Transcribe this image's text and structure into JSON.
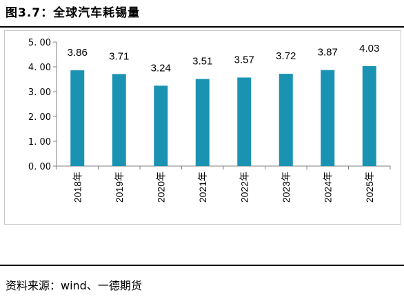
{
  "header": {
    "title": "图3.7：全球汽车耗锡量"
  },
  "footer": {
    "source": "资料来源：wind、一德期货"
  },
  "colors": {
    "bar": "#1a93b3",
    "axis": "#7f7f7f",
    "frame": "#c8c8c8"
  },
  "chart_data": {
    "type": "bar",
    "title": "",
    "xlabel": "",
    "ylabel": "",
    "categories": [
      "2018年",
      "2019年",
      "2020年",
      "2021年",
      "2022年",
      "2023年",
      "2024年",
      "2025年"
    ],
    "values": [
      3.86,
      3.71,
      3.24,
      3.51,
      3.57,
      3.72,
      3.87,
      4.03
    ],
    "value_labels": [
      "3.86",
      "3.71",
      "3.24",
      "3.51",
      "3.57",
      "3.72",
      "3.87",
      "4.03"
    ],
    "ylim": [
      0,
      5
    ],
    "yticks": [
      0,
      1,
      2,
      3,
      4,
      5
    ],
    "ytick_labels": [
      "0. 00",
      "1. 00",
      "2. 00",
      "3. 00",
      "4. 00",
      "5. 00"
    ],
    "grid": false,
    "legend": "none"
  }
}
